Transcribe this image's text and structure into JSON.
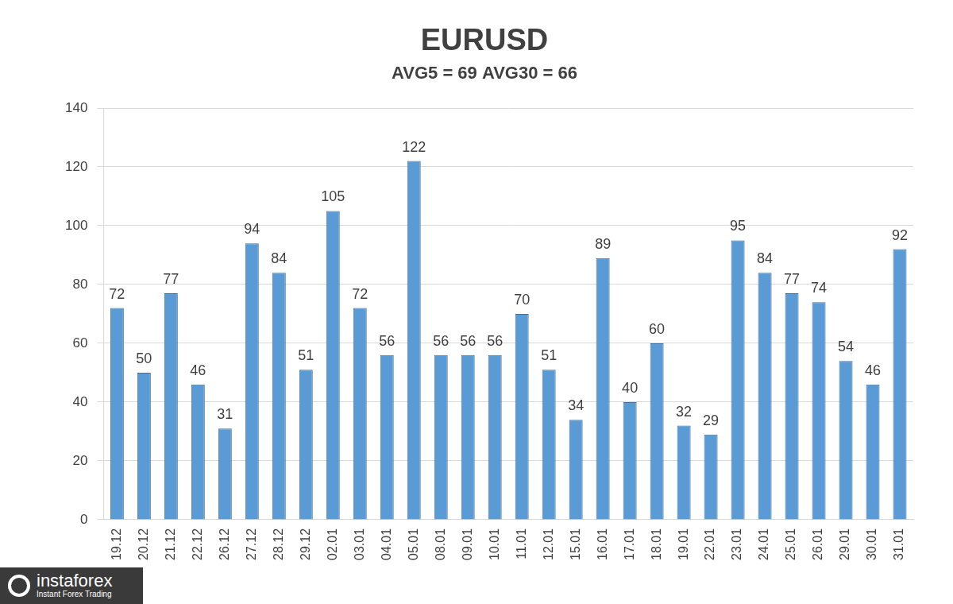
{
  "chart_data": {
    "type": "bar",
    "title": "EURUSD",
    "subtitle": "AVG5 = 69 AVG30 = 66",
    "categories": [
      "19.12",
      "20.12",
      "21.12",
      "22.12",
      "26.12",
      "27.12",
      "28.12",
      "29.12",
      "02.01",
      "03.01",
      "04.01",
      "05.01",
      "08.01",
      "09.01",
      "10.01",
      "11.01",
      "12.01",
      "15.01",
      "16.01",
      "17.01",
      "18.01",
      "19.01",
      "22.01",
      "23.01",
      "24.01",
      "25.01",
      "26.01",
      "29.01",
      "30.01",
      "31.01"
    ],
    "values": [
      72,
      50,
      77,
      46,
      31,
      94,
      84,
      51,
      105,
      72,
      56,
      122,
      56,
      56,
      56,
      70,
      51,
      34,
      89,
      40,
      60,
      32,
      29,
      95,
      84,
      77,
      74,
      54,
      46,
      92
    ],
    "color": "#5b9bd5",
    "ylim": [
      0,
      140
    ],
    "yticks": [
      0,
      20,
      40,
      60,
      80,
      100,
      120,
      140
    ],
    "grid": true,
    "data_labels": true,
    "annotations": [
      "instaforex",
      "Instant Forex Trading"
    ]
  }
}
